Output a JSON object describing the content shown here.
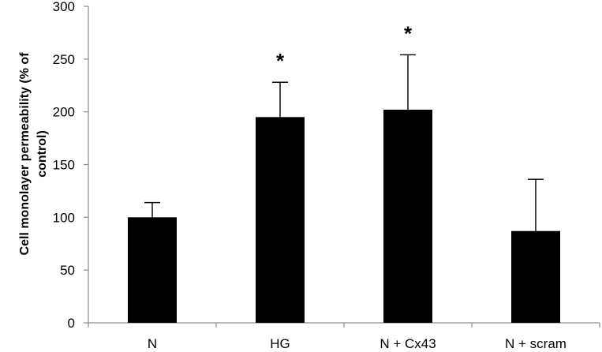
{
  "chart_data": {
    "type": "bar",
    "categories": [
      "N",
      "HG",
      "N + Cx43",
      "N + scram"
    ],
    "values": [
      100,
      195,
      202,
      87
    ],
    "error_plus": [
      14,
      33,
      52,
      49
    ],
    "significance": [
      "",
      "*",
      "*",
      ""
    ],
    "ylabel_line1": "Cell monolayer permeability (% of",
    "ylabel_line2": "control)",
    "ylim": [
      0,
      300
    ],
    "yticks": [
      "0",
      "50",
      "100",
      "150",
      "200",
      "250",
      "300"
    ],
    "grid": false,
    "bar_color": "#000000"
  }
}
